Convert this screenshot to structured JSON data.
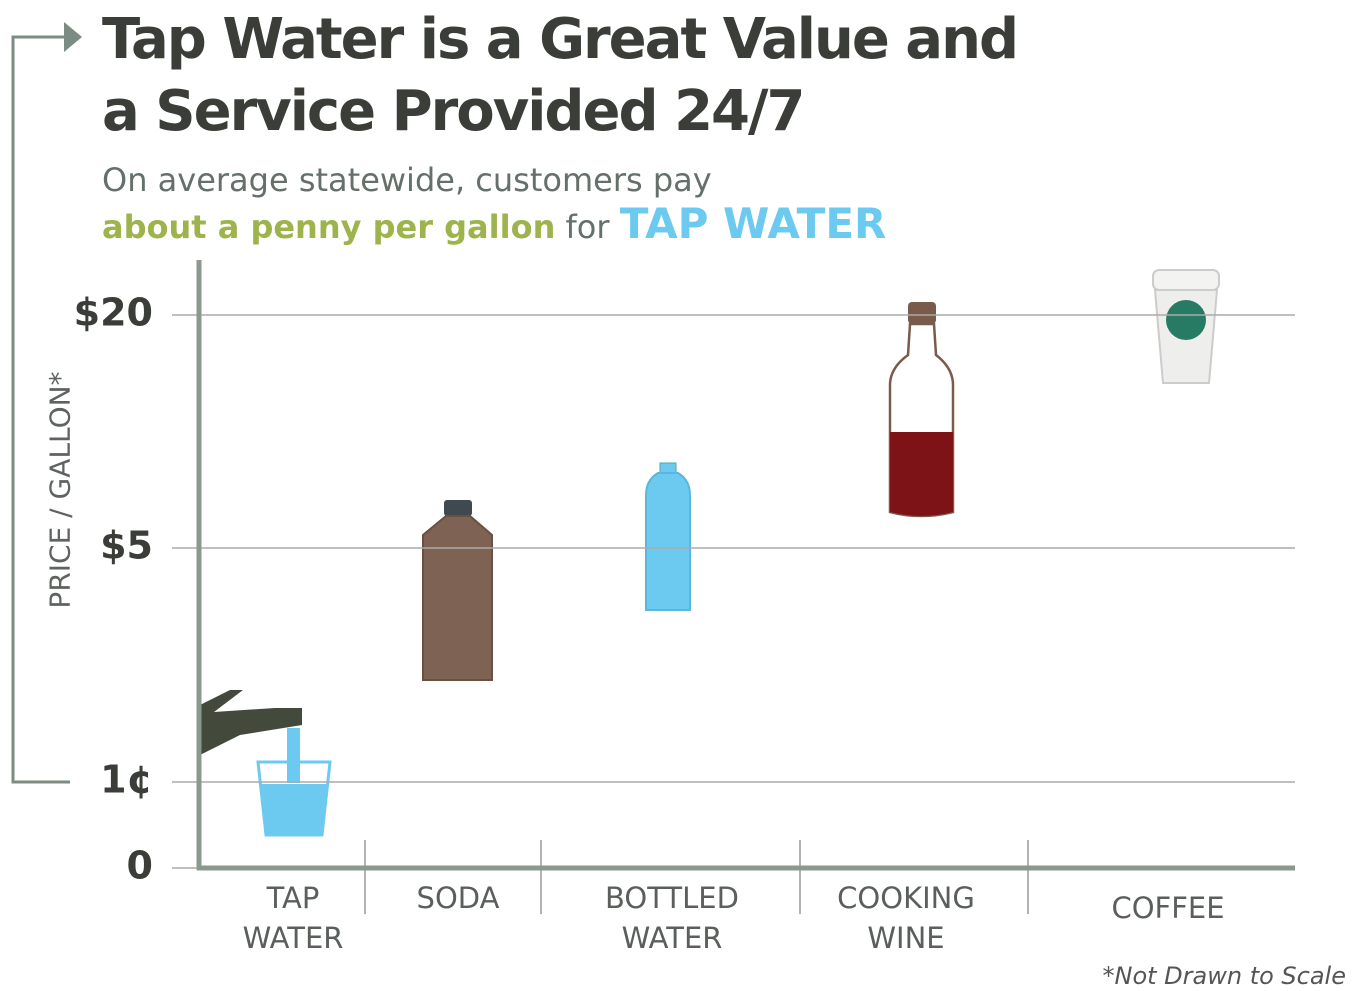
{
  "chart_data": {
    "type": "pictograph",
    "title": "Tap Water is a Great Value and a Service Provided 24/7",
    "subtitle": {
      "line1": "On average statewide, customers pay",
      "highlight": "about a penny per gallon",
      "joiner": "for",
      "emphasis": "TAP WATER"
    },
    "ylabel": "PRICE / GALLON*",
    "categories": [
      "TAP WATER",
      "SODA",
      "BOTTLED WATER",
      "COOKING WINE",
      "COFFEE"
    ],
    "yticks": [
      0,
      {
        "value": 0.01,
        "label": "1¢"
      },
      {
        "value": 5,
        "label": "$5"
      },
      {
        "value": 20,
        "label": "$20"
      }
    ],
    "grid": true,
    "note": "*Not Drawn to Scale"
  }
}
